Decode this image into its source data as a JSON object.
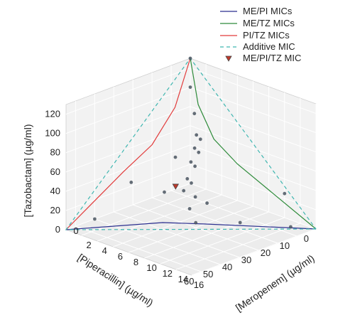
{
  "chart_data": {
    "type": "scatter",
    "dimensions": 3,
    "xlabel": "[Meropenem] (µg/ml)",
    "ylabel": "[Piperacillin] (µg/ml)",
    "zlabel": "[Tazobactam] (µg/ml)",
    "xlim": [
      0,
      16
    ],
    "ylim": [
      0,
      65
    ],
    "zlim": [
      0,
      130
    ],
    "xticks": [
      "0",
      "2",
      "4",
      "6",
      "8",
      "10",
      "12",
      "14",
      "16"
    ],
    "yticks": [
      "0",
      "10",
      "20",
      "30",
      "40",
      "50",
      "60"
    ],
    "zticks": [
      "0",
      "20",
      "40",
      "60",
      "80",
      "100",
      "120"
    ],
    "grid": true,
    "legend_position": "top-right",
    "colors": {
      "me_pi": "#2b2f8f",
      "me_tz": "#2e8b3a",
      "pi_tz": "#e23b3b",
      "additive": "#3fb6b0",
      "triple": "#c0392b",
      "points": "#4a5560"
    },
    "series": [
      {
        "name": "ME/PI MICs",
        "style": "line",
        "color": "#2b2f8f",
        "points": [
          [
            16,
            0,
            0
          ],
          [
            8,
            25,
            0
          ],
          [
            5,
            35,
            0
          ],
          [
            0,
            65,
            0
          ]
        ]
      },
      {
        "name": "ME/TZ MICs",
        "style": "line",
        "color": "#2e8b3a",
        "points": [
          [
            16,
            0,
            0
          ],
          [
            6,
            0,
            38
          ],
          [
            3,
            0,
            55
          ],
          [
            1,
            0,
            85
          ],
          [
            0,
            0,
            130
          ]
        ]
      },
      {
        "name": "PI/TZ MICs",
        "style": "line",
        "color": "#e23b3b",
        "points": [
          [
            0,
            65,
            0
          ],
          [
            0,
            35,
            38
          ],
          [
            0,
            20,
            55
          ],
          [
            0,
            8,
            85
          ],
          [
            0,
            0,
            130
          ]
        ]
      },
      {
        "name": "Additive MIC",
        "style": "dashed",
        "color": "#3fb6b0",
        "points": [
          [
            16,
            0,
            0
          ],
          [
            0,
            65,
            0
          ],
          [
            0,
            0,
            130
          ],
          [
            16,
            0,
            0
          ]
        ]
      },
      {
        "name": "ME/PI/TZ MIC",
        "style": "marker",
        "color": "#c0392b",
        "points": [
          [
            3,
            20,
            20
          ]
        ]
      }
    ],
    "observations": [
      [
        0,
        0,
        130
      ],
      [
        0,
        0,
        100
      ],
      [
        1.5,
        4,
        80
      ],
      [
        2,
        5,
        60
      ],
      [
        3,
        7,
        60
      ],
      [
        2.5,
        8,
        50
      ],
      [
        3.5,
        10,
        50
      ],
      [
        3,
        12,
        40
      ],
      [
        4,
        14,
        40
      ],
      [
        2,
        16,
        45
      ],
      [
        4,
        18,
        30
      ],
      [
        5,
        20,
        30
      ],
      [
        6,
        22,
        20
      ],
      [
        5,
        24,
        25
      ],
      [
        7,
        20,
        15
      ],
      [
        6,
        25,
        10
      ],
      [
        8,
        30,
        5
      ],
      [
        4,
        30,
        25
      ],
      [
        10,
        15,
        0
      ],
      [
        14,
        5,
        0
      ],
      [
        1,
        35,
        30
      ],
      [
        0,
        50,
        0
      ],
      [
        12,
        0,
        25
      ]
    ]
  }
}
